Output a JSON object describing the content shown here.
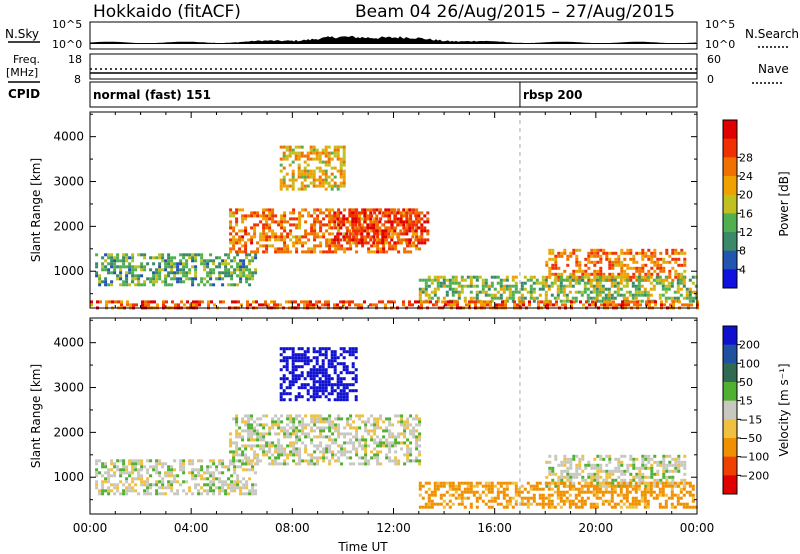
{
  "header": {
    "station": "Hokkaido (fitACF)",
    "beam_range": "Beam 04 26/Aug/2015 – 27/Aug/2015"
  },
  "strip": {
    "nsky_label": "N.Sky",
    "nsearch_label": "N.Search",
    "nsky_ticks": [
      "10^5",
      "10^0"
    ],
    "nsearch_ticks": [
      "10^5",
      "10^0"
    ],
    "freq_label_1": "Freq.",
    "freq_label_2": "[MHz]",
    "freq_ticks": [
      "18",
      "8"
    ],
    "nave_label": "Nave",
    "nave_ticks": [
      "60",
      "0"
    ],
    "cpid_label": "CPID",
    "cpid_modes": [
      {
        "label": "normal (fast) 151",
        "start_hour": 0
      },
      {
        "label": "rbsp 200",
        "start_hour": 17
      }
    ]
  },
  "chart_data": [
    {
      "type": "heatmap",
      "name": "power-panel",
      "ylabel": "Slant Range [km]",
      "xlabel": "",
      "x_ticks": [
        "00:00",
        "04:00",
        "08:00",
        "12:00",
        "16:00",
        "20:00",
        "00:00"
      ],
      "y_ticks": [
        "1000",
        "2000",
        "3000",
        "4000"
      ],
      "xlim": [
        0,
        24
      ],
      "ylim": [
        180,
        4550
      ],
      "colorbar_label": "Power [dB]",
      "colorbar_ticks": [
        "4",
        "8",
        "12",
        "16",
        "20",
        "24",
        "28"
      ],
      "colorbar_colors": [
        "#1010e0",
        "#2255b0",
        "#3a8a6a",
        "#50b050",
        "#c0c020",
        "#f0a000",
        "#f07000",
        "#f03000",
        "#e00000"
      ],
      "regions": [
        {
          "t0": 0.2,
          "t1": 6.5,
          "r0": 700,
          "r1": 1400,
          "value": 12
        },
        {
          "t0": 5.5,
          "t1": 13.0,
          "r0": 1400,
          "r1": 2400,
          "value": 22
        },
        {
          "t0": 9.5,
          "t1": 13.3,
          "r0": 1600,
          "r1": 2400,
          "value": 26
        },
        {
          "t0": 7.5,
          "t1": 10.0,
          "r0": 2800,
          "r1": 3800,
          "value": 18
        },
        {
          "t0": 18.0,
          "t1": 23.5,
          "r0": 800,
          "r1": 1500,
          "value": 22
        },
        {
          "t0": 13.0,
          "t1": 24.0,
          "r0": 300,
          "r1": 900,
          "value": 14
        },
        {
          "t0": 0.0,
          "t1": 24.0,
          "r0": 180,
          "r1": 350,
          "value": 24
        }
      ]
    },
    {
      "type": "heatmap",
      "name": "velocity-panel",
      "ylabel": "Slant Range [km]",
      "xlabel": "Time UT",
      "x_ticks": [
        "00:00",
        "04:00",
        "08:00",
        "12:00",
        "16:00",
        "20:00",
        "00:00"
      ],
      "y_ticks": [
        "1000",
        "2000",
        "3000",
        "4000"
      ],
      "xlim": [
        0,
        24
      ],
      "ylim": [
        180,
        4550
      ],
      "colorbar_label": "Velocity [m s⁻¹]",
      "colorbar_ticks": [
        "200",
        "100",
        "50",
        "15",
        "−15",
        "−50",
        "−100",
        "−200"
      ],
      "colorbar_colors": [
        "#1010d0",
        "#2050a0",
        "#306a50",
        "#50b030",
        "#c8c8c0",
        "#f0c040",
        "#f09000",
        "#f04000",
        "#e00000"
      ],
      "regions": [
        {
          "t0": 0.2,
          "t1": 6.5,
          "r0": 600,
          "r1": 1400,
          "value": 0
        },
        {
          "t0": 5.5,
          "t1": 13.0,
          "r0": 1300,
          "r1": 2400,
          "value": 0
        },
        {
          "t0": 7.5,
          "t1": 10.5,
          "r0": 2700,
          "r1": 3900,
          "value": 200
        },
        {
          "t0": 18.0,
          "t1": 23.5,
          "r0": 800,
          "r1": 1500,
          "value": 0
        },
        {
          "t0": 13.0,
          "t1": 24.0,
          "r0": 300,
          "r1": 900,
          "value": -40
        }
      ]
    }
  ],
  "colors": {
    "frame": "#000000",
    "dashed_marker": "#aaaaaa"
  }
}
